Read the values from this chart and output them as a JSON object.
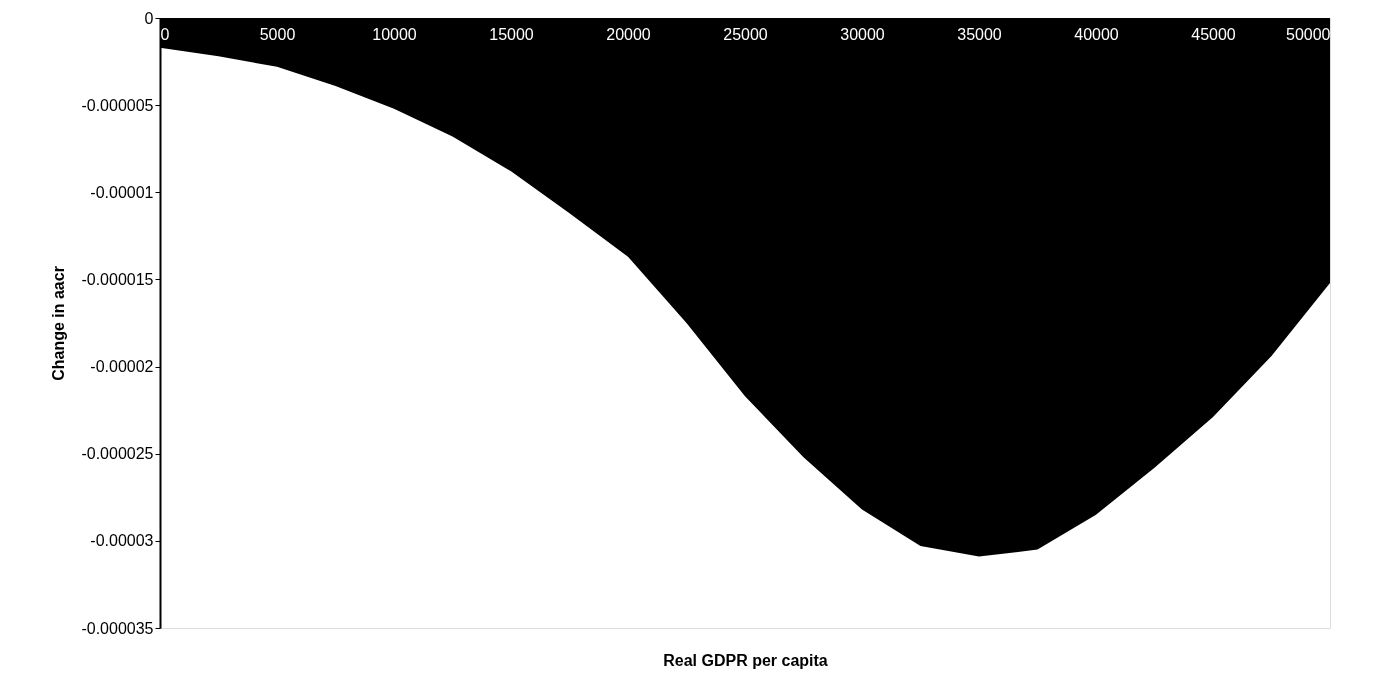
{
  "chart_data": {
    "type": "area",
    "xlabel": "Real GDPR per capita",
    "ylabel": "Change in aacr",
    "x": [
      0,
      2500,
      5000,
      7500,
      10000,
      12500,
      15000,
      17500,
      20000,
      22500,
      25000,
      27500,
      30000,
      32500,
      35000,
      37500,
      40000,
      42500,
      45000,
      47500,
      50000
    ],
    "series": [
      {
        "color": "#000000",
        "values": [
          -1.7e-06,
          -2.2e-06,
          -2.8e-06,
          -3.9e-06,
          -5.2e-06,
          -6.8e-06,
          -8.8e-06,
          -1.12e-05,
          -1.37e-05,
          -1.75e-05,
          -2.17e-05,
          -2.52e-05,
          -2.82e-05,
          -3.03e-05,
          -3.09e-05,
          -3.05e-05,
          -2.85e-05,
          -2.58e-05,
          -2.29e-05,
          -1.94e-05,
          -1.52e-05
        ]
      }
    ],
    "xlim": [
      0,
      50000
    ],
    "xticks": [
      0,
      5000,
      10000,
      15000,
      20000,
      25000,
      30000,
      35000,
      40000,
      45000,
      50000
    ],
    "ylim": [
      -3.5e-05,
      0
    ],
    "yticks": [
      0,
      {
        "value": -5e-06,
        "label": "-0.000005"
      },
      {
        "value": -1e-05,
        "label": "-0.00001"
      },
      {
        "value": -1.5e-05,
        "label": "-0.000015"
      },
      {
        "value": -2e-05,
        "label": "-0.00002"
      },
      {
        "value": -2.5e-05,
        "label": "-0.000025"
      },
      {
        "value": -3e-05,
        "label": "-0.00003"
      },
      {
        "value": -3.5e-05,
        "label": "-0.000035"
      }
    ],
    "grid": false
  }
}
